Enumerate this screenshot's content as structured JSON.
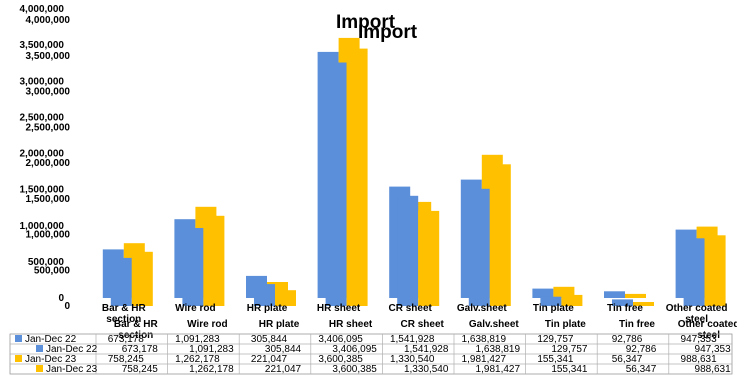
{
  "chart_data": {
    "type": "bar",
    "title": "Import",
    "categories": [
      "Bar & HR section",
      "Wire rod",
      "HR plate",
      "HR sheet",
      "CR sheet",
      "Galv.sheet",
      "Tin plate",
      "Tin free",
      "Other coated steel"
    ],
    "series": [
      {
        "name": "Jan-Dec 22",
        "color": "#5B8FD9",
        "values": [
          673178,
          1091283,
          305844,
          3406095,
          1541928,
          1638819,
          129757,
          92786,
          947353
        ]
      },
      {
        "name": "Jan-Dec 23",
        "color": "#FFC000",
        "values": [
          758245,
          1262178,
          221047,
          3600385,
          1330540,
          1981427,
          155341,
          56347,
          988631
        ]
      }
    ],
    "y_ticks": [
      "0",
      "500,000",
      "1,000,000",
      "1,500,000",
      "2,000,000",
      "2,500,000",
      "3,000,000",
      "3,500,000",
      "4,000,000"
    ],
    "ylim": [
      0,
      4000000
    ],
    "legend": "data-table",
    "grid": false
  }
}
